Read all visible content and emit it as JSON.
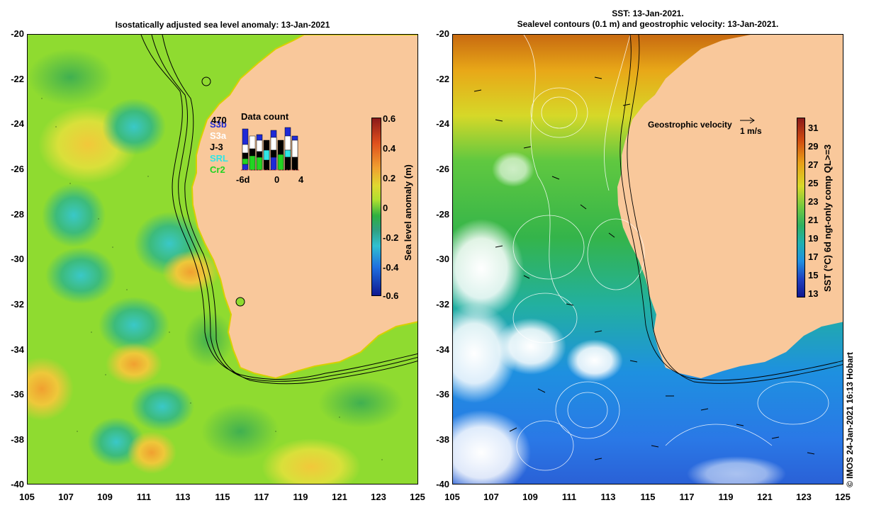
{
  "left_panel": {
    "title": "Isostatically adjusted sea level anomaly: 13-Jan-2021",
    "y_ticks": [
      "-20",
      "-22",
      "-24",
      "-26",
      "-28",
      "-30",
      "-32",
      "-34",
      "-36",
      "-38",
      "-40"
    ],
    "x_ticks": [
      "105",
      "107",
      "109",
      "111",
      "113",
      "115",
      "117",
      "119",
      "121",
      "123",
      "125"
    ],
    "colorbar": {
      "label": "Sea level anomaly (m)",
      "ticks": [
        "0.6",
        "0.4",
        "0.2",
        "0",
        "-0.2",
        "-0.4",
        "-0.6"
      ]
    },
    "inset": {
      "title": "Data count",
      "max_label": "470",
      "x_ticks": [
        "-6d",
        "0",
        "4"
      ],
      "satellites": [
        {
          "name": "S3b",
          "color": "#1f2ad6"
        },
        {
          "name": "S3a",
          "color": "#ffffff"
        },
        {
          "name": "J-3",
          "color": "#000000"
        },
        {
          "name": "SRL",
          "color": "#2fe6e6"
        },
        {
          "name": "Cr2",
          "color": "#22d422"
        }
      ]
    }
  },
  "right_panel": {
    "title_line1": "SST: 13-Jan-2021.",
    "title_line2": "Sealevel contours (0.1 m) and geostrophic velocity: 13-Jan-2021.",
    "y_ticks": [
      "-20",
      "-22",
      "-24",
      "-26",
      "-28",
      "-30",
      "-32",
      "-34",
      "-36",
      "-38",
      "-40"
    ],
    "x_ticks": [
      "105",
      "107",
      "109",
      "111",
      "113",
      "115",
      "117",
      "119",
      "121",
      "123",
      "125"
    ],
    "velocity_legend": "Geostrophic velocity",
    "velocity_scale": "1 m/s",
    "colorbar": {
      "label": "SST (°C) 6d ngt-only comp QL>=3",
      "ticks": [
        "31",
        "29",
        "27",
        "25",
        "23",
        "21",
        "19",
        "17",
        "15",
        "13"
      ]
    }
  },
  "credit": "© IMOS 24-Jan-2021 16:13 Hobart",
  "colors": {
    "land": "#f9c89b",
    "ssta_mid": "#9de02a",
    "sst_warm": "#e08a12",
    "sst_cool": "#1c8fe0"
  }
}
